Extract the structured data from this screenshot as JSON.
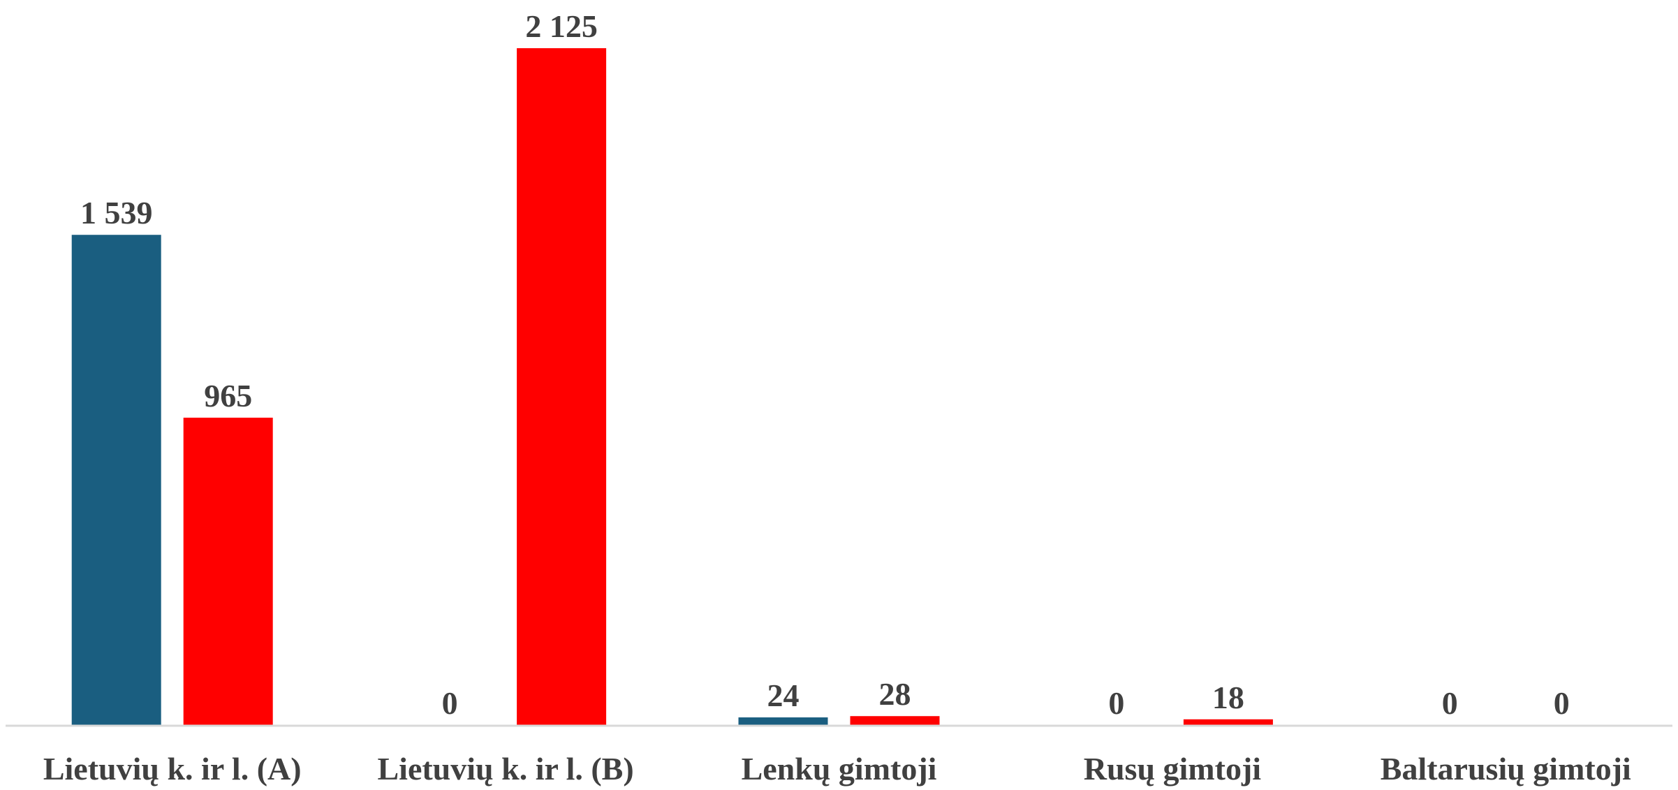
{
  "chart_data": {
    "type": "bar",
    "title": "",
    "xlabel": "",
    "ylabel": "",
    "categories": [
      "Lietuvių k. ir l. (A)",
      "Lietuvių k. ir l. (B)",
      "Lenkų gimtoji",
      "Rusų gimtoji",
      "Baltarusių gimtoji"
    ],
    "series": [
      {
        "color": "#1a5e80",
        "values": [
          1539,
          0,
          24,
          0,
          0
        ],
        "labels": [
          "1 539",
          "0",
          "24",
          "0",
          "0"
        ]
      },
      {
        "color": "#ff0000",
        "values": [
          965,
          2125,
          28,
          18,
          0
        ],
        "labels": [
          "965",
          "2 125",
          "28",
          "18",
          "0"
        ]
      }
    ],
    "ylim": [
      0,
      2125
    ],
    "grid": false,
    "legend": "none",
    "axis_color": "#d9d9d9",
    "text_color": "#404040"
  }
}
